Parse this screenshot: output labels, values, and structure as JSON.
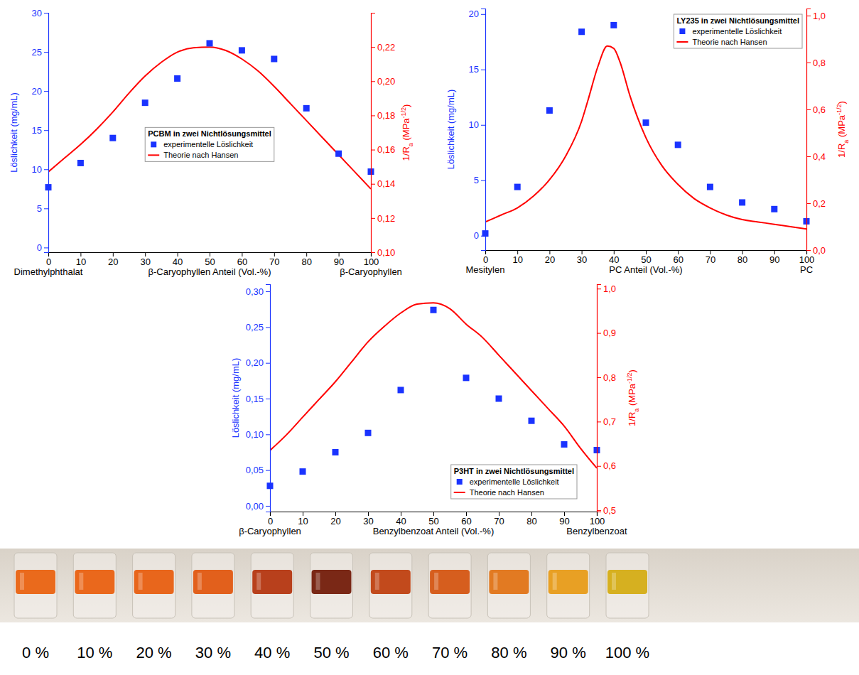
{
  "chart_data": [
    {
      "type": "scatter",
      "title": "PCBM in zwei Nichtlösungsmittel",
      "x_label": "β-Caryophyllen Anteil (Vol.-%)",
      "y_label": "Löslichkeit (mg/mL)",
      "y2_label": [
        "1/R",
        "a",
        " (MPa",
        "-1/2",
        ")"
      ],
      "annotations": [
        {
          "text": "Dimethylphthalat",
          "x": 0
        },
        {
          "text": "β-Caryophyllen",
          "x": 100
        }
      ],
      "xlim": [
        0,
        100
      ],
      "xticks": [
        0,
        10,
        20,
        30,
        40,
        50,
        60,
        70,
        80,
        90,
        100
      ],
      "ylim": [
        -0.6,
        30
      ],
      "yticks": [
        0,
        5,
        10,
        15,
        20,
        25,
        30
      ],
      "y2lim": [
        0.1,
        0.24
      ],
      "y2ticks": [
        {
          "value": 0.1,
          "label": "0,10"
        },
        {
          "value": 0.12,
          "label": "0,12"
        },
        {
          "value": 0.14,
          "label": "0,14"
        },
        {
          "value": 0.16,
          "label": "0,16"
        },
        {
          "value": 0.18,
          "label": "0,18"
        },
        {
          "value": 0.2,
          "label": "0,20"
        },
        {
          "value": 0.22,
          "label": "0,22"
        }
      ],
      "legend": "center",
      "series": [
        {
          "name": "experimentelle Löslichkeit",
          "type": "scatter",
          "marker": "square",
          "color": "#1a33ff",
          "x": [
            0,
            10,
            20,
            30,
            40,
            50,
            60,
            70,
            80,
            90,
            100
          ],
          "values": [
            7.7,
            10.8,
            14.0,
            18.5,
            21.6,
            26.1,
            25.2,
            24.1,
            17.8,
            12.0,
            9.7
          ]
        },
        {
          "name": "Theorie nach Hansen",
          "type": "line",
          "line_style": "solid",
          "color": "#ff0000",
          "axis": "y2",
          "x": [
            0,
            5,
            10,
            15,
            20,
            25,
            30,
            35,
            40,
            45,
            50,
            55,
            60,
            65,
            70,
            75,
            80,
            85,
            90,
            95,
            100
          ],
          "values": [
            0.147,
            0.155,
            0.163,
            0.172,
            0.182,
            0.193,
            0.203,
            0.211,
            0.217,
            0.2195,
            0.22,
            0.218,
            0.213,
            0.206,
            0.197,
            0.187,
            0.177,
            0.167,
            0.157,
            0.147,
            0.137
          ]
        }
      ]
    },
    {
      "type": "scatter",
      "title": "LY235 in zwei Nichtlösungsmittel",
      "x_label": "PC Anteil (Vol.-%)",
      "y_label": "Löslichkeit (mg/mL)",
      "y2_label": [
        "1/R",
        "a",
        " (MPa",
        "-1/2",
        ")"
      ],
      "annotations": [
        {
          "text": "Mesitylen",
          "x": 0
        },
        {
          "text": "PC",
          "x": 100
        }
      ],
      "xlim": [
        0,
        100
      ],
      "xticks": [
        0,
        10,
        20,
        30,
        40,
        50,
        60,
        70,
        80,
        90,
        100
      ],
      "ylim": [
        -1.3,
        20.5
      ],
      "yticks": [
        0,
        5,
        10,
        15,
        20
      ],
      "y2lim": [
        0,
        1.03
      ],
      "y2ticks": [
        {
          "value": 0,
          "label": "0,0"
        },
        {
          "value": 0.2,
          "label": "0,2"
        },
        {
          "value": 0.4,
          "label": "0,4"
        },
        {
          "value": 0.6,
          "label": "0,6"
        },
        {
          "value": 0.8,
          "label": "0,8"
        },
        {
          "value": 1,
          "label": "1,0"
        }
      ],
      "legend": "top-right",
      "series": [
        {
          "name": "experimentelle Löslichkeit",
          "type": "scatter",
          "marker": "square",
          "color": "#1a33ff",
          "x": [
            0,
            10,
            20,
            30,
            40,
            50,
            60,
            70,
            80,
            90,
            100
          ],
          "values": [
            0.2,
            4.4,
            11.3,
            18.4,
            19.0,
            10.2,
            8.2,
            4.4,
            3.0,
            2.4,
            1.3
          ]
        },
        {
          "name": "Theorie nach Hansen",
          "type": "line",
          "line_style": "solid",
          "color": "#ff0000",
          "axis": "y2",
          "x": [
            0,
            5,
            10,
            15,
            20,
            25,
            30,
            32,
            35,
            38,
            40,
            42,
            45,
            50,
            55,
            60,
            65,
            70,
            75,
            80,
            85,
            90,
            95,
            100
          ],
          "values": [
            0.12,
            0.15,
            0.18,
            0.23,
            0.3,
            0.4,
            0.55,
            0.64,
            0.78,
            0.87,
            0.86,
            0.8,
            0.66,
            0.48,
            0.36,
            0.28,
            0.22,
            0.18,
            0.15,
            0.13,
            0.12,
            0.11,
            0.1,
            0.09
          ]
        }
      ]
    },
    {
      "type": "scatter",
      "title": "P3HT in zwei Nichtlösungsmittel",
      "x_label": "Benzylbenzoat Anteil (Vol.-%)",
      "y_label": "Löslichkeit (mg/mL)",
      "y2_label": [
        "1/R",
        "a",
        " (MPa",
        "-1/2",
        ")"
      ],
      "annotations": [
        {
          "text": "β-Caryophyllen",
          "x": 0
        },
        {
          "text": "Benzylbenzoat",
          "x": 100
        }
      ],
      "xlim": [
        0,
        100
      ],
      "xticks": [
        0,
        10,
        20,
        30,
        40,
        50,
        60,
        70,
        80,
        90,
        100
      ],
      "ylim": [
        -0.008,
        0.31
      ],
      "yticks": [
        {
          "value": 0,
          "label": "0,00"
        },
        {
          "value": 0.05,
          "label": "0,05"
        },
        {
          "value": 0.1,
          "label": "0,10"
        },
        {
          "value": 0.15,
          "label": "0,15"
        },
        {
          "value": 0.2,
          "label": "0,20"
        },
        {
          "value": 0.25,
          "label": "0,25"
        },
        {
          "value": 0.3,
          "label": "0,30"
        }
      ],
      "y2lim": [
        0.497,
        1.01
      ],
      "y2ticks": [
        {
          "value": 0.5,
          "label": "0,5"
        },
        {
          "value": 0.6,
          "label": "0,6"
        },
        {
          "value": 0.7,
          "label": "0,7"
        },
        {
          "value": 0.8,
          "label": "0,8"
        },
        {
          "value": 0.9,
          "label": "0,9"
        },
        {
          "value": 1,
          "label": "1,0"
        }
      ],
      "legend": "bottom-right",
      "series": [
        {
          "name": "experimentelle Löslichkeit",
          "type": "scatter",
          "marker": "square",
          "color": "#1a33ff",
          "x": [
            0,
            10,
            20,
            30,
            40,
            50,
            60,
            70,
            80,
            90,
            100
          ],
          "values": [
            0.028,
            0.048,
            0.075,
            0.102,
            0.162,
            0.274,
            0.179,
            0.15,
            0.119,
            0.086,
            0.078
          ]
        },
        {
          "name": "Theorie nach Hansen",
          "type": "line",
          "line_style": "solid",
          "color": "#ff0000",
          "axis": "y2",
          "x": [
            0,
            5,
            10,
            15,
            20,
            25,
            30,
            35,
            40,
            45,
            50,
            55,
            60,
            65,
            70,
            75,
            80,
            85,
            90,
            95,
            100
          ],
          "values": [
            0.635,
            0.67,
            0.71,
            0.75,
            0.79,
            0.835,
            0.88,
            0.915,
            0.945,
            0.965,
            0.968,
            0.955,
            0.92,
            0.89,
            0.85,
            0.81,
            0.77,
            0.73,
            0.69,
            0.64,
            0.595
          ]
        }
      ]
    }
  ],
  "photo_strip": {
    "labels": [
      "0 %",
      "10 %",
      "20 %",
      "30 %",
      "40 %",
      "50 %",
      "60 %",
      "70 %",
      "80 %",
      "90 %",
      "100 %"
    ]
  }
}
